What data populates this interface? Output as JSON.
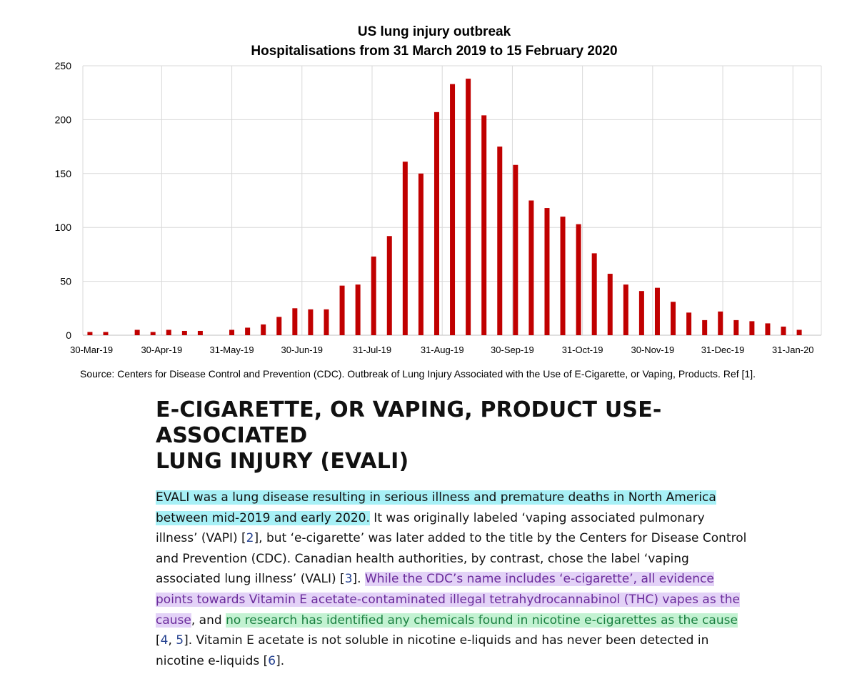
{
  "chart_data": {
    "type": "bar",
    "title": [
      "US lung injury outbreak",
      "Hospitalisations from 31 March 2019 to 15 February 2020"
    ],
    "ylim": [
      0,
      250
    ],
    "yticks": [
      0,
      50,
      100,
      150,
      200,
      250
    ],
    "xtick_labels": [
      "30-Mar-19",
      "30-Apr-19",
      "31-May-19",
      "30-Jun-19",
      "31-Jul-19",
      "31-Aug-19",
      "30-Sep-19",
      "31-Oct-19",
      "30-Nov-19",
      "31-Dec-19",
      "31-Jan-20"
    ],
    "bar_color": "#c00000",
    "grid": true,
    "values": [
      3,
      3,
      0,
      5,
      3,
      5,
      4,
      4,
      0,
      5,
      7,
      10,
      17,
      25,
      24,
      24,
      46,
      47,
      73,
      92,
      161,
      150,
      207,
      233,
      238,
      204,
      175,
      158,
      125,
      118,
      110,
      103,
      76,
      57,
      47,
      41,
      44,
      31,
      21,
      14,
      22,
      14,
      13,
      11,
      8,
      5
    ]
  },
  "source_note": "Source: Centers for Disease Control and Prevention (CDC). Outbreak of Lung Injury Associated with the Use of E-Cigarette, or Vaping, Products. Ref [1].",
  "article": {
    "heading_line1": "E-CIGARETTE, OR VAPING, PRODUCT USE-ASSOCIATED",
    "heading_line2": "LUNG INJURY (EVALI)",
    "p_hl1": "EVALI was a lung disease resulting in serious illness and premature deaths in North America between mid-2019 and early 2020.",
    "p_t1": " It was originally labeled ‘vaping associated pulmonary illness’ (VAPI) [",
    "ref2": "2",
    "p_t2": "], but ‘e-cigarette’ was later added to the title by the Centers for Disease Control and Prevention (CDC). Canadian health authorities, by contrast, chose the label ‘vaping associated lung illness’ (VALI) [",
    "ref3": "3",
    "p_t3": "]. ",
    "p_hl2": "While the CDC’s name includes ‘e-cigarette’, all evidence points towards Vitamin E acetate-contaminated illegal tetrahydrocannabinol (THC) vapes as the cause",
    "p_t4": ", and ",
    "p_hl3": "no research has identified any chemicals found in nicotine e-cigarettes as the cause",
    "p_t5": " [",
    "ref4": "4",
    "p_t6": ", ",
    "ref5": "5",
    "p_t7": "]. Vitamin E acetate is not soluble in nicotine e-liquids and has never been detected in nicotine e-liquids [",
    "ref6": "6",
    "p_t8": "]."
  },
  "colors": {
    "cyan_highlight": "#a7f0f6",
    "purple_highlight": "#e3d2f7",
    "green_highlight": "#c3f2d2",
    "ref_link": "#23408f"
  }
}
